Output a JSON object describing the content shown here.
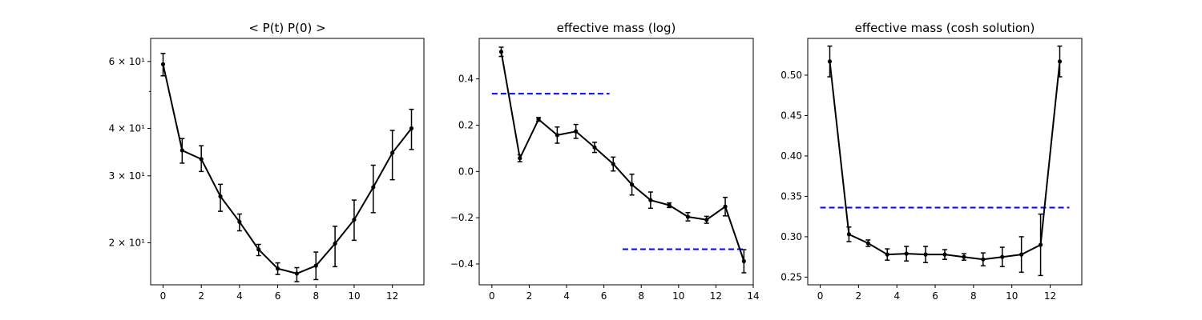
{
  "chart_data": [
    {
      "type": "line",
      "title": "< P(t)  P(0) >",
      "yscale": "log",
      "xlim": [
        -0.65,
        13.65
      ],
      "ylim": [
        15.5,
        69
      ],
      "xticks": [
        0,
        2,
        4,
        6,
        8,
        10,
        12
      ],
      "xtick_labels": [
        "0",
        "2",
        "4",
        "6",
        "8",
        "10",
        "12"
      ],
      "yticks": [
        20,
        30,
        40,
        60
      ],
      "ytick_labels": [
        "2 × 10¹",
        "3 × 10¹",
        "4 × 10¹",
        "6 × 10¹"
      ],
      "minor_yticks": [
        50
      ],
      "series": [
        {
          "color": "#000000",
          "x": [
            0,
            1,
            2,
            3,
            4,
            5,
            6,
            7,
            8,
            9,
            10,
            11,
            12,
            13
          ],
          "y": [
            59.0,
            35.0,
            33.2,
            26.5,
            22.7,
            19.2,
            17.1,
            16.6,
            17.4,
            19.9,
            23.0,
            28.0,
            34.5,
            40.0
          ],
          "yerr_low": [
            4.0,
            2.6,
            2.4,
            2.3,
            1.2,
            0.7,
            0.6,
            0.8,
            1.4,
            2.6,
            2.7,
            4.0,
            5.2,
            4.8
          ],
          "yerr_high": [
            4.0,
            2.6,
            2.8,
            2.0,
            1.1,
            0.6,
            0.6,
            0.6,
            1.5,
            2.2,
            2.9,
            4.0,
            5.0,
            4.9
          ]
        }
      ]
    },
    {
      "type": "line",
      "title": "effective mass (log)",
      "xlim": [
        -0.68,
        14.0
      ],
      "ylim": [
        -0.49,
        0.575
      ],
      "xticks": [
        0,
        2,
        4,
        6,
        8,
        10,
        12,
        14
      ],
      "xtick_labels": [
        "0",
        "2",
        "4",
        "6",
        "8",
        "10",
        "12",
        "14"
      ],
      "yticks": [
        -0.4,
        -0.2,
        0.0,
        0.2,
        0.4
      ],
      "ytick_labels": [
        "−0.4",
        "−0.2",
        "0.0",
        "0.2",
        "0.4"
      ],
      "series": [
        {
          "color": "#000000",
          "x": [
            0.5,
            1.5,
            2.5,
            3.5,
            4.5,
            5.5,
            6.5,
            7.5,
            8.5,
            9.5,
            10.5,
            11.5,
            12.5,
            13.5
          ],
          "y": [
            0.517,
            0.057,
            0.225,
            0.157,
            0.173,
            0.104,
            0.032,
            -0.057,
            -0.124,
            -0.146,
            -0.196,
            -0.209,
            -0.152,
            -0.388
          ],
          "yerr": [
            0.02,
            0.015,
            0.008,
            0.035,
            0.03,
            0.022,
            0.03,
            0.045,
            0.035,
            0.01,
            0.018,
            0.015,
            0.04,
            0.05
          ]
        }
      ],
      "reference_lines": [
        {
          "color": "#0000ff",
          "style": "dashed",
          "y": 0.336,
          "x_range": [
            0,
            6.3
          ]
        },
        {
          "color": "#0000ff",
          "style": "dashed",
          "y": -0.336,
          "x_range": [
            7.0,
            13.5
          ]
        }
      ]
    },
    {
      "type": "line",
      "title": "effective mass (cosh solution)",
      "xlim": [
        -0.65,
        13.65
      ],
      "ylim": [
        0.2405,
        0.5455
      ],
      "xticks": [
        0,
        2,
        4,
        6,
        8,
        10,
        12
      ],
      "xtick_labels": [
        "0",
        "2",
        "4",
        "6",
        "8",
        "10",
        "12"
      ],
      "yticks": [
        0.25,
        0.3,
        0.35,
        0.4,
        0.45,
        0.5
      ],
      "ytick_labels": [
        "0.25",
        "0.30",
        "0.35",
        "0.40",
        "0.45",
        "0.50"
      ],
      "series": [
        {
          "color": "#000000",
          "x": [
            0.5,
            1.5,
            2.5,
            3.5,
            4.5,
            5.5,
            6.5,
            7.5,
            8.5,
            9.5,
            10.5,
            11.5,
            12.5
          ],
          "y": [
            0.517,
            0.303,
            0.292,
            0.278,
            0.279,
            0.278,
            0.278,
            0.275,
            0.272,
            0.275,
            0.278,
            0.29,
            0.517
          ],
          "yerr": [
            0.019,
            0.009,
            0.004,
            0.007,
            0.009,
            0.01,
            0.006,
            0.004,
            0.008,
            0.012,
            0.022,
            0.038,
            0.019
          ]
        }
      ],
      "reference_lines": [
        {
          "color": "#0000ff",
          "style": "dashed",
          "y": 0.336,
          "x_range": [
            0,
            13
          ]
        }
      ]
    }
  ]
}
